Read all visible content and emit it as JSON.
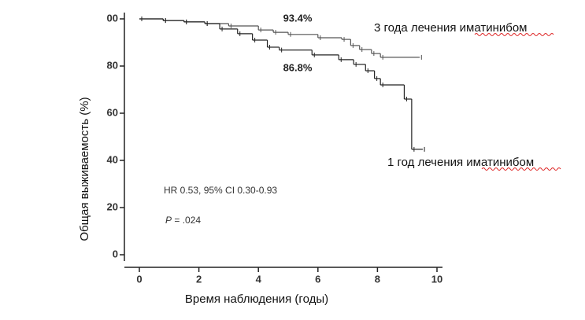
{
  "chart_data": {
    "type": "step",
    "x_label": "Время наблюдения (годы)",
    "y_label": "Общая выживаемость (%)",
    "xlim": [
      0,
      10
    ],
    "xticks": [
      0,
      2,
      4,
      6,
      8,
      10
    ],
    "ylim": [
      0,
      100
    ],
    "yticks": [
      0,
      20,
      40,
      60,
      80,
      {
        "value": 100,
        "label": "00"
      }
    ],
    "series": [
      {
        "name": "3 года лечения иматинибом",
        "color": "#555555",
        "x": [
          0,
          0.8,
          1.5,
          2.2,
          3,
          4,
          4.5,
          5,
          6,
          6.8,
          7.1,
          7.4,
          7.8,
          8.1,
          9.4
        ],
        "values": [
          100,
          99.3,
          98.7,
          98,
          97,
          95.3,
          94.3,
          93.4,
          92,
          91.3,
          88.7,
          87,
          85.3,
          83.7,
          83.7
        ]
      },
      {
        "name": "1 год лечения иматинибом",
        "color": "#222222",
        "x": [
          0,
          0.8,
          1.5,
          2.2,
          2.7,
          3.3,
          3.8,
          4.3,
          4.7,
          5.8,
          6.7,
          7.2,
          7.6,
          7.9,
          8.1,
          8.9,
          9.15,
          9.5
        ],
        "values": [
          100,
          99.3,
          98.7,
          98,
          95.7,
          93.7,
          91,
          88,
          86.8,
          84.7,
          82.7,
          80.7,
          78,
          74.7,
          72,
          66,
          44.7,
          44.7
        ]
      }
    ],
    "annotations": [
      "93.4%",
      "86.8%"
    ],
    "hr_text": "HR 0.53, 95% CI 0.30-0.93",
    "p_label": "P",
    "p_value": "= .024"
  }
}
